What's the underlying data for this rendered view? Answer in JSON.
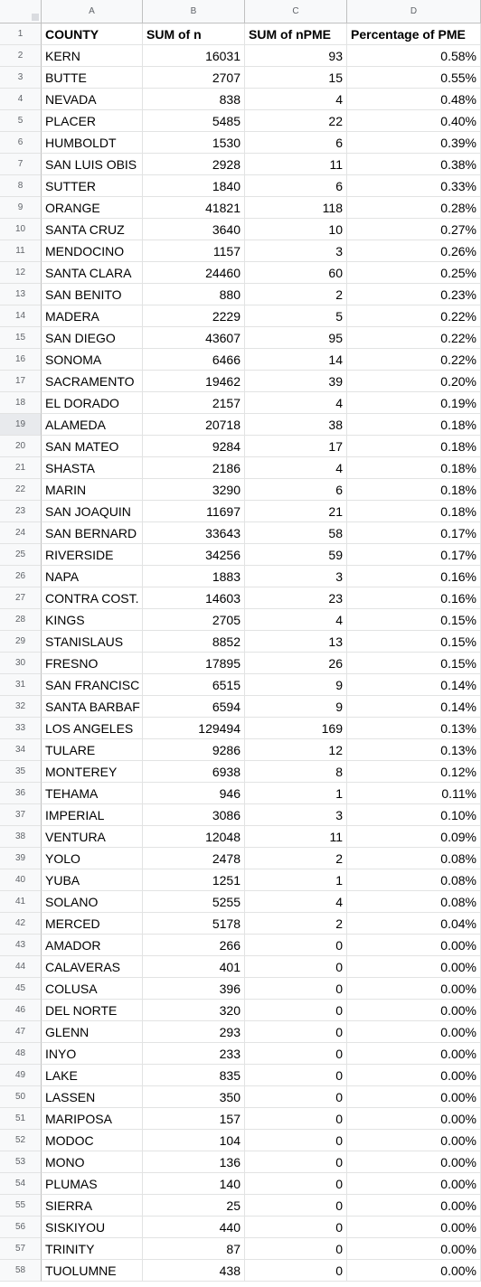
{
  "columns": [
    "A",
    "B",
    "C",
    "D"
  ],
  "header": [
    "COUNTY",
    "SUM of n",
    "SUM of nPME",
    "Percentage of PME"
  ],
  "rows": [
    [
      "KERN",
      "16031",
      "93",
      "0.58%"
    ],
    [
      "BUTTE",
      "2707",
      "15",
      "0.55%"
    ],
    [
      "NEVADA",
      "838",
      "4",
      "0.48%"
    ],
    [
      "PLACER",
      "5485",
      "22",
      "0.40%"
    ],
    [
      "HUMBOLDT",
      "1530",
      "6",
      "0.39%"
    ],
    [
      "SAN LUIS OBIS",
      "2928",
      "11",
      "0.38%"
    ],
    [
      "SUTTER",
      "1840",
      "6",
      "0.33%"
    ],
    [
      "ORANGE",
      "41821",
      "118",
      "0.28%"
    ],
    [
      "SANTA CRUZ",
      "3640",
      "10",
      "0.27%"
    ],
    [
      "MENDOCINO",
      "1157",
      "3",
      "0.26%"
    ],
    [
      "SANTA CLARA",
      "24460",
      "60",
      "0.25%"
    ],
    [
      "SAN BENITO",
      "880",
      "2",
      "0.23%"
    ],
    [
      "MADERA",
      "2229",
      "5",
      "0.22%"
    ],
    [
      "SAN DIEGO",
      "43607",
      "95",
      "0.22%"
    ],
    [
      "SONOMA",
      "6466",
      "14",
      "0.22%"
    ],
    [
      "SACRAMENTO",
      "19462",
      "39",
      "0.20%"
    ],
    [
      "EL DORADO",
      "2157",
      "4",
      "0.19%"
    ],
    [
      "ALAMEDA",
      "20718",
      "38",
      "0.18%"
    ],
    [
      "SAN MATEO",
      "9284",
      "17",
      "0.18%"
    ],
    [
      "SHASTA",
      "2186",
      "4",
      "0.18%"
    ],
    [
      "MARIN",
      "3290",
      "6",
      "0.18%"
    ],
    [
      "SAN JOAQUIN",
      "11697",
      "21",
      "0.18%"
    ],
    [
      "SAN BERNARD",
      "33643",
      "58",
      "0.17%"
    ],
    [
      "RIVERSIDE",
      "34256",
      "59",
      "0.17%"
    ],
    [
      "NAPA",
      "1883",
      "3",
      "0.16%"
    ],
    [
      "CONTRA COST.",
      "14603",
      "23",
      "0.16%"
    ],
    [
      "KINGS",
      "2705",
      "4",
      "0.15%"
    ],
    [
      "STANISLAUS",
      "8852",
      "13",
      "0.15%"
    ],
    [
      "FRESNO",
      "17895",
      "26",
      "0.15%"
    ],
    [
      "SAN FRANCISC",
      "6515",
      "9",
      "0.14%"
    ],
    [
      "SANTA BARBAF",
      "6594",
      "9",
      "0.14%"
    ],
    [
      "LOS ANGELES",
      "129494",
      "169",
      "0.13%"
    ],
    [
      "TULARE",
      "9286",
      "12",
      "0.13%"
    ],
    [
      "MONTEREY",
      "6938",
      "8",
      "0.12%"
    ],
    [
      "TEHAMA",
      "946",
      "1",
      "0.11%"
    ],
    [
      "IMPERIAL",
      "3086",
      "3",
      "0.10%"
    ],
    [
      "VENTURA",
      "12048",
      "11",
      "0.09%"
    ],
    [
      "YOLO",
      "2478",
      "2",
      "0.08%"
    ],
    [
      "YUBA",
      "1251",
      "1",
      "0.08%"
    ],
    [
      "SOLANO",
      "5255",
      "4",
      "0.08%"
    ],
    [
      "MERCED",
      "5178",
      "2",
      "0.04%"
    ],
    [
      "AMADOR",
      "266",
      "0",
      "0.00%"
    ],
    [
      "CALAVERAS",
      "401",
      "0",
      "0.00%"
    ],
    [
      "COLUSA",
      "396",
      "0",
      "0.00%"
    ],
    [
      "DEL NORTE",
      "320",
      "0",
      "0.00%"
    ],
    [
      "GLENN",
      "293",
      "0",
      "0.00%"
    ],
    [
      "INYO",
      "233",
      "0",
      "0.00%"
    ],
    [
      "LAKE",
      "835",
      "0",
      "0.00%"
    ],
    [
      "LASSEN",
      "350",
      "0",
      "0.00%"
    ],
    [
      "MARIPOSA",
      "157",
      "0",
      "0.00%"
    ],
    [
      "MODOC",
      "104",
      "0",
      "0.00%"
    ],
    [
      "MONO",
      "136",
      "0",
      "0.00%"
    ],
    [
      "PLUMAS",
      "140",
      "0",
      "0.00%"
    ],
    [
      "SIERRA",
      "25",
      "0",
      "0.00%"
    ],
    [
      "SISKIYOU",
      "440",
      "0",
      "0.00%"
    ],
    [
      "TRINITY",
      "87",
      "0",
      "0.00%"
    ],
    [
      "TUOLUMNE",
      "438",
      "0",
      "0.00%"
    ]
  ],
  "selected_row": 19,
  "colors": {
    "header_bg": "#f8f9fa",
    "grid": "#e2e3e3",
    "header_text": "#5f6368"
  }
}
